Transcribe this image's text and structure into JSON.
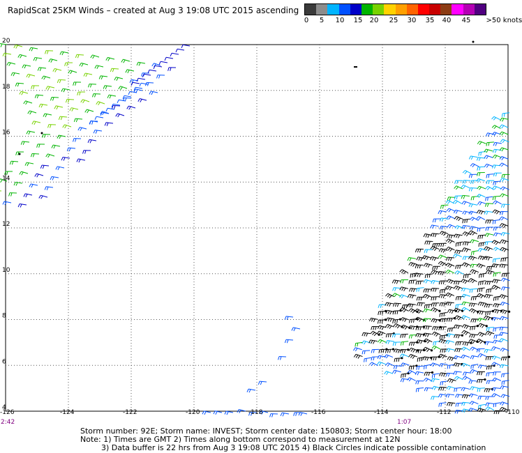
{
  "title": "RapidScat 25KM Winds – created at Aug  3 19:08 UTC 2015 ascending",
  "legend": {
    "colors": [
      "#3a3a3a",
      "#8c8c8c",
      "#00b4ff",
      "#0050ff",
      "#0000c8",
      "#00b400",
      "#78d200",
      "#ffd200",
      "#ffa000",
      "#ff6400",
      "#ff0000",
      "#c80000",
      "#8c3c14",
      "#ff00ff",
      "#b400b4",
      "#500080"
    ],
    "labels": [
      "0",
      "5",
      "10",
      "15",
      "20",
      "25",
      "30",
      "35",
      "40",
      "45",
      ">50 knots"
    ],
    "units": "knots"
  },
  "axes": {
    "lon_ticks": [
      "-126",
      "-124",
      "-122",
      "-120",
      "-118",
      "-116",
      "-114",
      "-112",
      "-110"
    ],
    "lat_ticks": [
      "20",
      "18",
      "16",
      "14",
      "12",
      "10",
      "8",
      "6",
      "4"
    ],
    "lon_range": [
      -126,
      -110
    ],
    "lat_range": [
      4,
      20
    ],
    "grid": "dotted"
  },
  "time_labels": {
    "left": "2:42",
    "right": "1:07"
  },
  "footer": {
    "line1": "Storm number: 92E;  Storm name: INVEST;  Storm center date: 150803;  Storm center hour: 18:00",
    "line2": "Note: 1) Times are GMT  2) Times along bottom correspond to measurement at 12N",
    "line3": "3) Data buffer is 22 hrs from Aug  3 19:08 UTC 2015   4) Black Circles indicate possible contamination"
  },
  "wind_palette": {
    "black": "#000000",
    "dark_blue": "#0000c8",
    "blue": "#0050ff",
    "cyan": "#00b4ff",
    "green": "#00b400",
    "light_green": "#78d200",
    "yellow": "#ffd200",
    "orange": "#ffa000"
  }
}
